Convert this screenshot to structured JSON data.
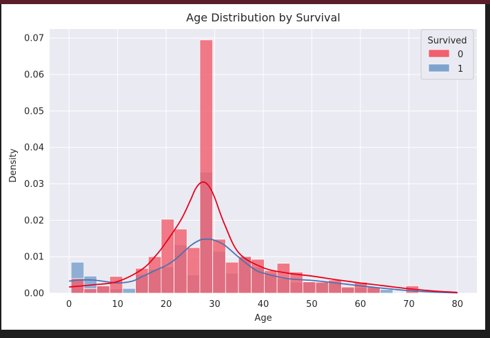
{
  "chart_data": {
    "type": "bar",
    "title": "Age Distribution by Survival",
    "xlabel": "Age",
    "ylabel": "Density",
    "xlim": [
      -4,
      84
    ],
    "ylim": [
      0,
      0.0725
    ],
    "xticks": [
      "0",
      "10",
      "20",
      "30",
      "40",
      "50",
      "60",
      "70",
      "80"
    ],
    "yticks": [
      "0.00",
      "0.01",
      "0.02",
      "0.03",
      "0.04",
      "0.05",
      "0.06",
      "0.07"
    ],
    "xtick_values": [
      0,
      10,
      20,
      30,
      40,
      50,
      60,
      70,
      80
    ],
    "ytick_values": [
      0,
      0.01,
      0.02,
      0.03,
      0.04,
      0.05,
      0.06,
      0.07
    ],
    "grid": true,
    "legend": {
      "title": "Survived",
      "placement": "top-right",
      "entries": [
        {
          "label": "0",
          "color": "#f0606e"
        },
        {
          "label": "1",
          "color": "#7fa3cf"
        }
      ]
    },
    "bin_edges": [
      0.42,
      3.07,
      5.72,
      8.38,
      11.03,
      13.68,
      16.33,
      18.98,
      21.63,
      24.29,
      26.94,
      29.59,
      32.24,
      34.89,
      37.54,
      40.2,
      42.85,
      45.5,
      48.15,
      50.8,
      53.45,
      56.11,
      58.76,
      61.41,
      64.06,
      66.71,
      69.36,
      72.02
    ],
    "series": [
      {
        "name": "0",
        "color": "#f0606e",
        "kde_color": "#e8001c",
        "values": [
          0.004,
          0.0012,
          0.002,
          0.0046,
          0.0,
          0.0068,
          0.01,
          0.0203,
          0.0176,
          0.0125,
          0.0695,
          0.0148,
          0.0085,
          0.01,
          0.0093,
          0.0062,
          0.0082,
          0.0058,
          0.0031,
          0.003,
          0.0036,
          0.0017,
          0.003,
          0.0017,
          0.0,
          0.0,
          0.002
        ],
        "kde_x": [
          0,
          5,
          10,
          15,
          18,
          20,
          23,
          25,
          26,
          27,
          28,
          29,
          30,
          32,
          35,
          40,
          45,
          50,
          55,
          60,
          65,
          70,
          75,
          80
        ],
        "kde_y": [
          0.0017,
          0.0023,
          0.0032,
          0.0065,
          0.0105,
          0.014,
          0.02,
          0.0255,
          0.0285,
          0.0302,
          0.0304,
          0.029,
          0.0262,
          0.019,
          0.011,
          0.007,
          0.0055,
          0.0047,
          0.0037,
          0.0028,
          0.002,
          0.0012,
          0.0006,
          0.0002
        ]
      },
      {
        "name": "1",
        "color": "#7fa3cf",
        "kde_color": "#4c72b0",
        "values": [
          0.0085,
          0.0047,
          0.002,
          0.0012,
          0.0013,
          0.0052,
          0.0066,
          0.0072,
          0.0133,
          0.005,
          0.0332,
          0.0115,
          0.0055,
          0.0102,
          0.0072,
          0.0055,
          0.004,
          0.003,
          0.0031,
          0.003,
          0.003,
          0.0015,
          0.0015,
          0.0015,
          0.001,
          0.0,
          0.0
        ],
        "kde_x": [
          0,
          2,
          5,
          8,
          10,
          13,
          15,
          18,
          20,
          22,
          25,
          27,
          28,
          29,
          30,
          32,
          35,
          38,
          40,
          45,
          50,
          55,
          60,
          65,
          70,
          75,
          80
        ],
        "kde_y": [
          0.0033,
          0.0036,
          0.0036,
          0.0031,
          0.0028,
          0.0033,
          0.0045,
          0.0064,
          0.0076,
          0.0094,
          0.013,
          0.0146,
          0.0148,
          0.0148,
          0.0145,
          0.0132,
          0.0098,
          0.0067,
          0.0055,
          0.004,
          0.0035,
          0.0028,
          0.002,
          0.0013,
          0.0007,
          0.0003,
          0.0001
        ]
      }
    ]
  }
}
